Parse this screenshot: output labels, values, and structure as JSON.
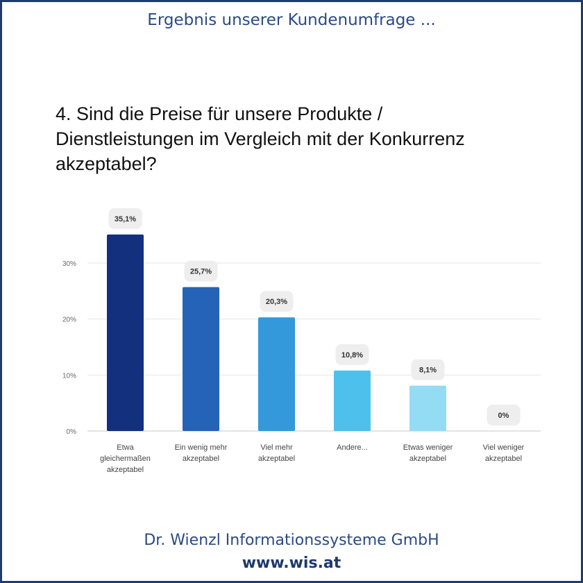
{
  "header": {
    "title": "Ergebnis unserer Kundenumfrage ..."
  },
  "question": {
    "lines": [
      "4. Sind die Preise für unsere Produkte /",
      "Dienstleistungen im Vergleich mit der Konkurrenz",
      "akzeptabel?"
    ]
  },
  "chart_data": {
    "type": "bar",
    "categories": [
      [
        "Etwa",
        "gleichermaßen",
        "akzeptabel"
      ],
      [
        "Ein wenig mehr",
        "akzeptabel"
      ],
      [
        "Viel mehr",
        "akzeptabel"
      ],
      [
        "Andere..."
      ],
      [
        "Etwas weniger",
        "akzeptabel"
      ],
      [
        "Viel weniger",
        "akzeptabel"
      ]
    ],
    "values": [
      35.1,
      25.7,
      20.3,
      10.8,
      8.1,
      0
    ],
    "data_labels": [
      "35,1%",
      "25,7%",
      "20,3%",
      "10,8%",
      "8,1%",
      "0%"
    ],
    "colors": [
      "#13307f",
      "#2563b9",
      "#3399db",
      "#4ec0ec",
      "#94dcf4",
      "#b8e8f8"
    ],
    "y_ticks": [
      0,
      10,
      20,
      30
    ],
    "y_tick_labels": [
      "0%",
      "10%",
      "20%",
      "30%"
    ],
    "ylim": [
      0,
      30
    ],
    "grid": true,
    "legend": "none"
  },
  "footer": {
    "company": "Dr. Wienzl Informationssysteme GmbH",
    "url": "www.wis.at"
  }
}
